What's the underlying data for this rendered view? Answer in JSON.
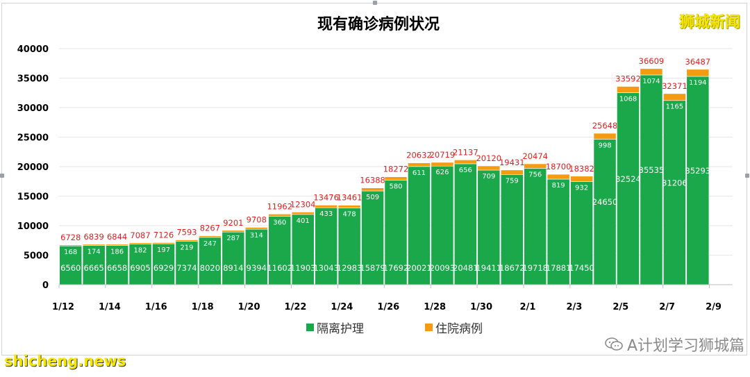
{
  "watermarks": {
    "brand": "狮城新闻",
    "wechat": "A计划学习狮城篇",
    "site": "shicheng.news"
  },
  "colors": {
    "isolation": "#1aa84a",
    "hospital": "#f39c12",
    "total_label": "#e02020",
    "inner_label": "#ffffff"
  },
  "chart_data": {
    "type": "bar",
    "stacked": true,
    "title": "现有确诊病例状况",
    "categories": [
      "1/12",
      "1/13",
      "1/14",
      "1/15",
      "1/16",
      "1/17",
      "1/18",
      "1/19",
      "1/20",
      "1/21",
      "1/22",
      "1/23",
      "1/24",
      "1/25",
      "1/26",
      "1/27",
      "1/28",
      "1/29",
      "1/30",
      "1/31",
      "2/1",
      "2/2",
      "2/3",
      "2/4",
      "2/5",
      "2/6",
      "2/7",
      "2/8"
    ],
    "x_tick_labels": [
      "1/12",
      "1/14",
      "1/16",
      "1/18",
      "1/20",
      "1/22",
      "1/24",
      "1/26",
      "1/28",
      "1/30",
      "2/1",
      "2/3",
      "2/5",
      "2/7",
      "2/9"
    ],
    "series": [
      {
        "name": "隔离护理",
        "values": [
          6560,
          6665,
          6658,
          6905,
          6929,
          7374,
          8020,
          8914,
          9394,
          11602,
          11903,
          13043,
          12983,
          15879,
          17692,
          20021,
          20093,
          20481,
          19411,
          18672,
          19718,
          17881,
          17450,
          24650,
          32524,
          35535,
          31206,
          35293
        ]
      },
      {
        "name": "住院病例",
        "values": [
          168,
          174,
          186,
          182,
          197,
          219,
          247,
          287,
          314,
          360,
          401,
          433,
          478,
          509,
          580,
          611,
          626,
          656,
          709,
          759,
          756,
          819,
          932,
          998,
          1068,
          1074,
          1165,
          1194
        ]
      }
    ],
    "totals": [
      6728,
      6839,
      6844,
      7087,
      7126,
      7593,
      8267,
      9201,
      9708,
      11962,
      12304,
      13476,
      13461,
      16388,
      18272,
      20632,
      20719,
      21137,
      20120,
      19431,
      20474,
      18700,
      18382,
      25648,
      33592,
      36609,
      32371,
      36487
    ],
    "y_ticks": [
      "0",
      "5000",
      "10000",
      "15000",
      "20000",
      "25000",
      "30000",
      "35000",
      "40000"
    ],
    "ylim": [
      0,
      40000
    ],
    "grid": true,
    "legend": "bottom"
  }
}
